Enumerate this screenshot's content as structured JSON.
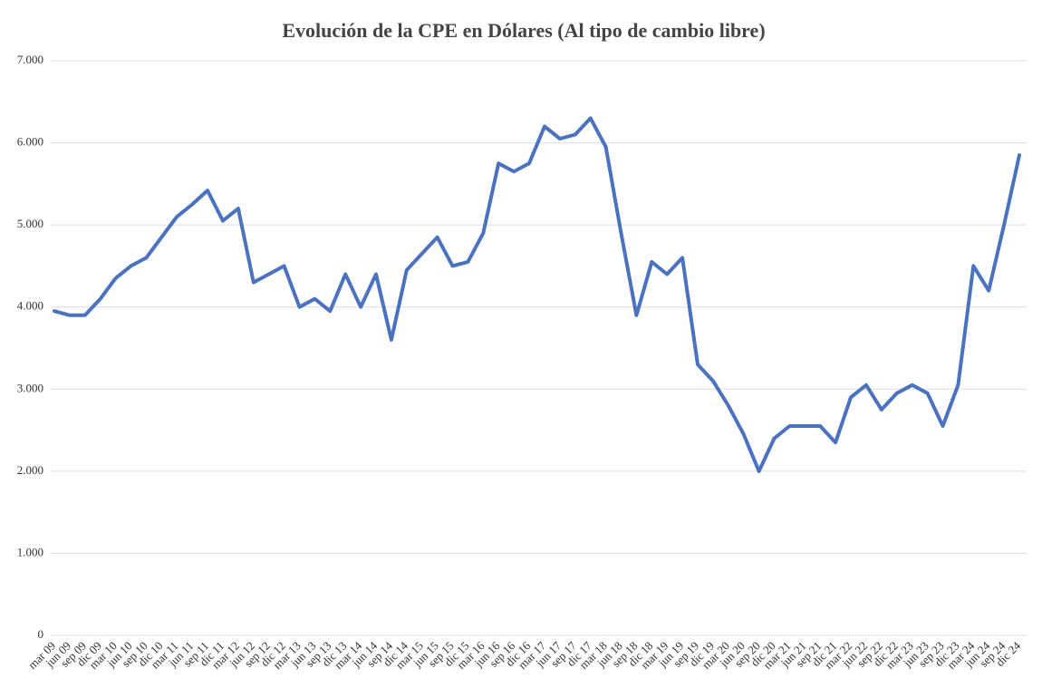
{
  "chart_data": {
    "type": "line",
    "title": "Evolución de la CPE en Dólares (Al tipo de cambio libre)",
    "categories": [
      "mar 09",
      "jun 09",
      "sep 09",
      "dic 09",
      "mar 10",
      "jun 10",
      "sep 10",
      "dic 10",
      "mar 11",
      "jun 11",
      "sep 11",
      "dic 11",
      "mar 12",
      "jun 12",
      "sep 12",
      "dic 12",
      "mar 13",
      "jun 13",
      "sep 13",
      "dic 13",
      "mar 14",
      "jun 14",
      "sep 14",
      "dic 14",
      "mar 15",
      "jun 15",
      "sep 15",
      "dic 15",
      "mar 16",
      "jun 16",
      "sep 16",
      "dic 16",
      "mar 17",
      "jun 17",
      "sep 17",
      "dic 17",
      "mar 18",
      "jun 18",
      "sep 18",
      "dic 18",
      "mar 19",
      "jun 19",
      "sep 19",
      "dic 19",
      "mar 20",
      "jun 20",
      "sep 20",
      "dic 20",
      "mar 21",
      "jun 21",
      "sep 21",
      "dic 21",
      "mar 22",
      "jun 22",
      "sep 22",
      "dic 22",
      "mar 23",
      "jun 23",
      "sep 23",
      "dic 23",
      "mar 24",
      "jun 24",
      "sep 24",
      "dic 24"
    ],
    "series": [
      {
        "color": "#4a72c0",
        "values": [
          3950,
          3900,
          3900,
          4100,
          4350,
          4500,
          4600,
          4850,
          5100,
          5250,
          5420,
          5050,
          5200,
          4300,
          4400,
          4500,
          4000,
          4100,
          3950,
          4400,
          4000,
          4400,
          3600,
          4450,
          4650,
          4850,
          4500,
          4550,
          4900,
          5750,
          5650,
          5750,
          6200,
          6050,
          6100,
          6300,
          5950,
          4900,
          3900,
          4550,
          4400,
          4600,
          3300,
          3100,
          2800,
          2450,
          2000,
          2400,
          2550,
          2550,
          2550,
          2350,
          2900,
          3050,
          2750,
          2950,
          3050,
          2950,
          2550,
          3050,
          4500,
          4200,
          5000,
          5850
        ]
      }
    ],
    "ylim": [
      0,
      7000
    ],
    "yticks": [
      0,
      {
        "value": 1000,
        "label": "1.000"
      },
      {
        "value": 2000,
        "label": "2.000"
      },
      {
        "value": 3000,
        "label": "3.000"
      },
      {
        "value": 4000,
        "label": "4.000"
      },
      {
        "value": 5000,
        "label": "5.000"
      },
      {
        "value": 6000,
        "label": "6.000"
      },
      {
        "value": 7000,
        "label": "7.000"
      }
    ],
    "grid": true
  }
}
